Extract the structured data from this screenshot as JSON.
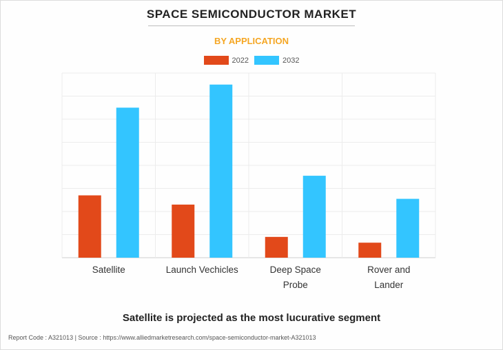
{
  "header": {
    "title": "SPACE SEMICONDUCTOR MARKET",
    "subtitle": "BY APPLICATION"
  },
  "colors": {
    "series_2022": "#e2491a",
    "series_2032": "#33c5ff",
    "subtitle": "#f5a623"
  },
  "chart_data": {
    "type": "bar",
    "title": "",
    "xlabel": "",
    "ylabel": "",
    "categories": [
      [
        "Satellite"
      ],
      [
        "Launch Vechicles"
      ],
      [
        "Deep Space",
        "Probe"
      ],
      [
        "Rover and",
        "Lander"
      ]
    ],
    "series": [
      {
        "name": "2022",
        "values": [
          2.7,
          2.3,
          0.9,
          0.65
        ]
      },
      {
        "name": "2032",
        "values": [
          6.5,
          7.5,
          3.55,
          2.55
        ]
      }
    ],
    "ylim": [
      0,
      8
    ],
    "grid": true,
    "legend": "top-center",
    "y_ticks_shown": false
  },
  "footer": {
    "note": "Satellite is projected as the most lucurative segment",
    "source": "Report Code : A321013  |  Source : https://www.alliedmarketresearch.com/space-semiconductor-market-A321013"
  }
}
